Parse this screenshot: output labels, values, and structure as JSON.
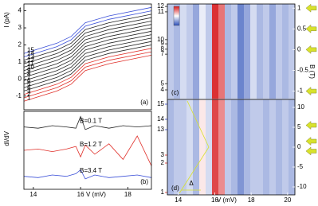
{
  "chart_data": [
    {
      "type": "line",
      "panel": "(a)",
      "ylabel": "I (pA)",
      "x": [
        13.6,
        15,
        15.6,
        16.2,
        17.2,
        19.0
      ],
      "xlim": [
        13.6,
        19.0
      ],
      "ylim": [
        -1.8,
        4.4
      ],
      "yticks": [
        -1,
        0,
        1,
        2,
        3,
        4
      ],
      "series": [
        {
          "name": "1",
          "color": "#e0302a",
          "values": [
            -1.3,
            -0.7,
            -0.3,
            0.5,
            0.9,
            1.4
          ]
        },
        {
          "name": "2",
          "color": "#e0302a",
          "values": [
            -1.1,
            -0.5,
            -0.1,
            0.7,
            1.1,
            1.6
          ]
        },
        {
          "name": "3",
          "color": "#e0302a",
          "values": [
            -0.9,
            -0.3,
            0.1,
            0.9,
            1.3,
            1.8
          ]
        },
        {
          "name": "4",
          "color": "#222222",
          "values": [
            -0.7,
            -0.1,
            0.3,
            1.1,
            1.5,
            2.0
          ]
        },
        {
          "name": "5",
          "color": "#222222",
          "values": [
            -0.5,
            0.1,
            0.5,
            1.3,
            1.7,
            2.2
          ]
        },
        {
          "name": "6",
          "color": "#222222",
          "values": [
            -0.3,
            0.3,
            0.7,
            1.5,
            1.9,
            2.4
          ]
        },
        {
          "name": "7",
          "color": "#222222",
          "values": [
            -0.1,
            0.5,
            0.9,
            1.7,
            2.1,
            2.6
          ]
        },
        {
          "name": "8",
          "color": "#222222",
          "values": [
            0.1,
            0.7,
            1.1,
            1.9,
            2.3,
            2.8
          ]
        },
        {
          "name": "9",
          "color": "#222222",
          "values": [
            0.3,
            0.9,
            1.3,
            2.1,
            2.5,
            3.0
          ]
        },
        {
          "name": "10",
          "color": "#222222",
          "values": [
            0.5,
            1.1,
            1.5,
            2.3,
            2.7,
            3.2
          ]
        },
        {
          "name": "11",
          "color": "#222222",
          "values": [
            0.7,
            1.3,
            1.7,
            2.5,
            2.9,
            3.4
          ]
        },
        {
          "name": "12",
          "color": "#222222",
          "values": [
            0.9,
            1.5,
            1.9,
            2.7,
            3.1,
            3.6
          ]
        },
        {
          "name": "13",
          "color": "#222222",
          "values": [
            1.1,
            1.7,
            2.1,
            2.9,
            3.3,
            3.8
          ]
        },
        {
          "name": "14",
          "color": "#3a4fd8",
          "values": [
            1.3,
            1.9,
            2.3,
            3.1,
            3.5,
            4.0
          ]
        },
        {
          "name": "15",
          "color": "#3a4fd8",
          "values": [
            1.5,
            2.1,
            2.5,
            3.3,
            3.7,
            4.2
          ]
        }
      ]
    },
    {
      "type": "line",
      "panel": "(b)",
      "ylabel": "dI/dV",
      "x": [
        13.6,
        14.2,
        14.8,
        15.4,
        15.8,
        16.0,
        16.2,
        16.6,
        17.2,
        17.8,
        18.4,
        19.0
      ],
      "xlim": [
        13.6,
        19.0
      ],
      "xticks": [
        14,
        16,
        18
      ],
      "xlabel": "V (mV)",
      "ylim": [
        -3,
        3
      ],
      "series": [
        {
          "name": "B=0.1 T",
          "color": "#222222",
          "values": [
            1.8,
            1.7,
            1.9,
            1.8,
            1.7,
            2.6,
            1.6,
            1.9,
            1.7,
            1.9,
            1.8,
            1.9
          ]
        },
        {
          "name": "B=1.2 T",
          "color": "#e0302a",
          "values": [
            0.0,
            0.1,
            -0.1,
            0.1,
            0.3,
            -0.5,
            0.4,
            -0.3,
            0.5,
            -0.7,
            1.1,
            -1.2
          ]
        },
        {
          "name": "B=3.4 T",
          "color": "#3a4fd8",
          "values": [
            -2.0,
            -2.1,
            -1.9,
            -2.0,
            -1.8,
            -1.5,
            -2.2,
            -1.9,
            -2.1,
            -2.0,
            -1.9,
            -2.1
          ]
        }
      ]
    },
    {
      "type": "heatmap",
      "panel": "(c)",
      "ylabel": "B (T)",
      "x_edges": [
        13.4,
        13.75,
        14.1,
        14.45,
        14.8,
        15.15,
        15.5,
        15.85,
        16.2,
        16.55,
        16.9,
        17.25,
        17.6,
        17.95,
        18.3,
        18.65,
        19.0,
        19.35,
        19.7,
        20.05,
        20.4
      ],
      "z": [
        -0.3,
        -0.4,
        -0.2,
        -0.3,
        -0.5,
        -0.1,
        -0.3,
        0.9,
        0.6,
        -0.4,
        -0.3,
        -0.7,
        -0.5,
        -0.2,
        -0.4,
        -0.3,
        -0.5,
        -0.3,
        -0.4,
        -0.3
      ],
      "xlim": [
        13.4,
        20.4
      ],
      "ylim": [
        -1.2,
        1.1
      ],
      "yticks": [
        -1,
        -0.5,
        0,
        0.5,
        1
      ],
      "markers": [
        {
          "label": "12",
          "value": 1.04
        },
        {
          "label": "11",
          "value": 0.91
        },
        {
          "label": "10",
          "value": 0.24
        },
        {
          "label": "9",
          "value": 0.14
        },
        {
          "label": "8",
          "value": 0.01
        },
        {
          "label": "7",
          "value": -0.11
        },
        {
          "label": "5",
          "value": -0.82
        },
        {
          "label": "4",
          "value": -0.97
        }
      ],
      "arrows": [
        1,
        0.5,
        0,
        -1
      ]
    },
    {
      "type": "heatmap",
      "panel": "(d)",
      "annotation": "Δ",
      "x_edges": [
        13.4,
        13.75,
        14.1,
        14.45,
        14.8,
        15.15,
        15.5,
        15.85,
        16.2,
        16.55,
        16.9,
        17.25,
        17.6,
        17.95,
        18.3,
        18.65,
        19.0,
        19.35,
        19.7,
        20.05,
        20.4
      ],
      "z": [
        -0.4,
        -0.3,
        -0.3,
        -0.2,
        -0.4,
        0.1,
        -0.2,
        0.8,
        0.5,
        -0.3,
        -0.4,
        -0.6,
        -0.4,
        -0.3,
        -0.3,
        -0.4,
        -0.3,
        -0.4,
        -0.3,
        -0.4
      ],
      "xlim": [
        13.4,
        20.4
      ],
      "xticks": [
        14,
        16,
        18,
        20
      ],
      "xlabel": "V (mV)",
      "ylim": [
        -12,
        12
      ],
      "yticks": [
        -10,
        -5,
        0,
        5,
        10
      ],
      "markers": [
        {
          "label": "15",
          "value": 10.8,
          "color": "#3a4fd8"
        },
        {
          "label": "14",
          "value": 7,
          "color": "#3a4fd8"
        },
        {
          "label": "13",
          "value": 4.4,
          "color": "#3a4fd8"
        },
        {
          "label": "3",
          "value": -2,
          "color": "#e0302a"
        },
        {
          "label": "2",
          "value": -4,
          "color": "#e0302a"
        },
        {
          "label": "1",
          "value": -11.4,
          "color": "#e0302a"
        }
      ],
      "arrows": [
        5.5,
        1.5,
        -1
      ]
    }
  ]
}
